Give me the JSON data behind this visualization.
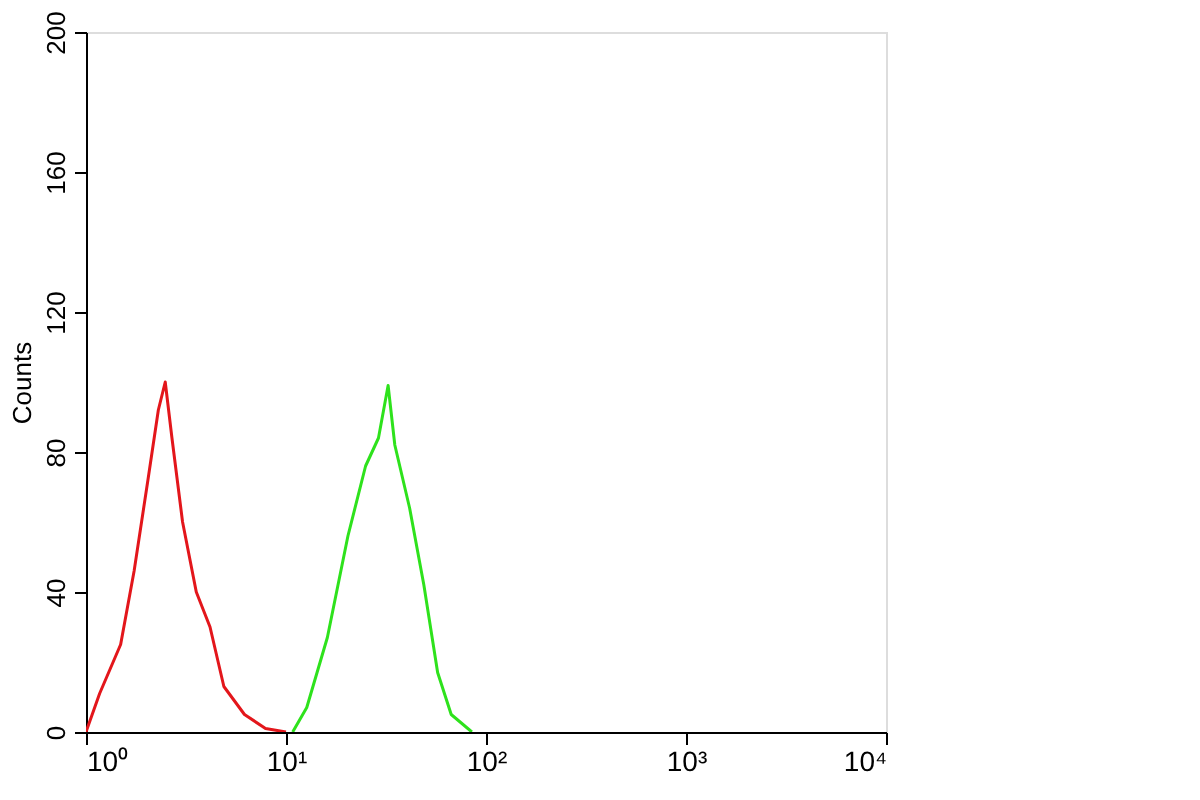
{
  "chart_data": {
    "type": "line",
    "ylabel": "Counts",
    "log": "x",
    "xlim": [
      1,
      10000
    ],
    "ylim": [
      0,
      200
    ],
    "xticks": [
      {
        "value": 1,
        "label": "10⁰"
      },
      {
        "value": 10,
        "label": "10¹"
      },
      {
        "value": 100,
        "label": "10²"
      },
      {
        "value": 1000,
        "label": "10³"
      },
      {
        "value": 10000,
        "label": "10⁴"
      }
    ],
    "yticks": [
      0,
      40,
      80,
      120,
      160,
      200
    ],
    "grid": false,
    "legend": false,
    "series": [
      {
        "color": "#e3161b",
        "x": [
          1,
          1.17,
          1.49,
          1.74,
          2.04,
          2.3,
          2.49,
          2.69,
          3.04,
          3.56,
          4.17,
          4.89,
          6.2,
          7.9,
          10
        ],
        "values": [
          0,
          11,
          25,
          46,
          72,
          92,
          100,
          84,
          60,
          40,
          30,
          13,
          5,
          1,
          0
        ]
      },
      {
        "color": "#2ee21c",
        "x": [
          10.8,
          12.7,
          16.1,
          20.4,
          25,
          29,
          32.4,
          35,
          41.5,
          48.9,
          57.3,
          67,
          85
        ],
        "values": [
          0,
          7,
          27,
          56,
          76,
          84,
          99,
          82,
          64,
          42,
          17,
          5,
          0
        ]
      }
    ]
  }
}
